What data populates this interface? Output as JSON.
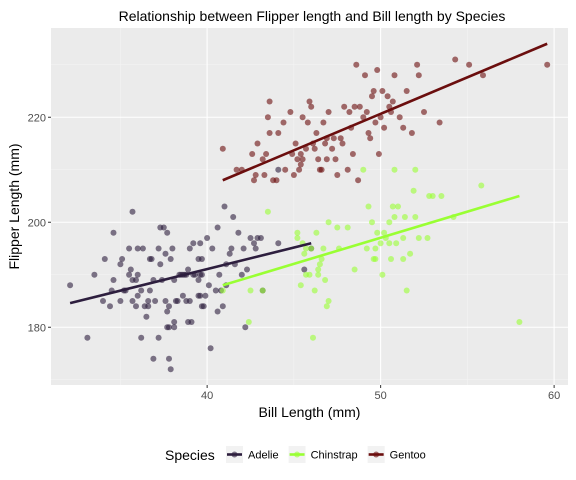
{
  "chart_data": {
    "type": "scatter",
    "title": "Relationship between Flipper length and Bill length by Species",
    "xlabel": "Bill Length (mm)",
    "ylabel": "Flipper Length (mm)",
    "xlim": [
      31.0,
      60.8
    ],
    "ylim": [
      169,
      237
    ],
    "xticks": [
      40,
      50,
      60
    ],
    "yticks": [
      180,
      200,
      220
    ],
    "grid": true,
    "legend": {
      "title": "Species",
      "placement": "bottom"
    },
    "series": [
      {
        "name": "Adelie",
        "color": "#2d1e3e",
        "trend": {
          "x": [
            32.1,
            46.0
          ],
          "y": [
            184.6,
            196.0
          ]
        },
        "points": [
          [
            32.1,
            188
          ],
          [
            33.1,
            178
          ],
          [
            33.5,
            190
          ],
          [
            34.0,
            185
          ],
          [
            34.4,
            184
          ],
          [
            34.5,
            187
          ],
          [
            34.6,
            189
          ],
          [
            34.6,
            198
          ],
          [
            35.0,
            185
          ],
          [
            35.0,
            192
          ],
          [
            35.1,
            193
          ],
          [
            35.2,
            187
          ],
          [
            35.3,
            187
          ],
          [
            35.5,
            190
          ],
          [
            35.5,
            195
          ],
          [
            35.6,
            191
          ],
          [
            35.7,
            185
          ],
          [
            35.7,
            189
          ],
          [
            35.7,
            202
          ],
          [
            35.9,
            184
          ],
          [
            35.9,
            189
          ],
          [
            36.0,
            186
          ],
          [
            36.0,
            190
          ],
          [
            36.0,
            195
          ],
          [
            36.2,
            187
          ],
          [
            36.2,
            178
          ],
          [
            36.3,
            195
          ],
          [
            36.4,
            184
          ],
          [
            36.5,
            182
          ],
          [
            36.6,
            184
          ],
          [
            36.6,
            185
          ],
          [
            36.7,
            187
          ],
          [
            36.7,
            193
          ],
          [
            36.8,
            193
          ],
          [
            36.9,
            189
          ],
          [
            37.0,
            185
          ],
          [
            37.2,
            178
          ],
          [
            37.2,
            195
          ],
          [
            37.3,
            192
          ],
          [
            37.3,
            199
          ],
          [
            37.5,
            199
          ],
          [
            37.6,
            185
          ],
          [
            37.6,
            194
          ],
          [
            37.7,
            180
          ],
          [
            37.7,
            183
          ],
          [
            37.7,
            198
          ],
          [
            37.8,
            174
          ],
          [
            37.8,
            180
          ],
          [
            37.8,
            184
          ],
          [
            37.9,
            172
          ],
          [
            37.9,
            193
          ],
          [
            38.0,
            195
          ],
          [
            38.1,
            180
          ],
          [
            38.1,
            181
          ],
          [
            38.1,
            189
          ],
          [
            38.2,
            185
          ],
          [
            38.3,
            185
          ],
          [
            38.5,
            190
          ],
          [
            38.6,
            186
          ],
          [
            38.6,
            190
          ],
          [
            38.7,
            190
          ],
          [
            38.8,
            185
          ],
          [
            38.8,
            190
          ],
          [
            38.9,
            181
          ],
          [
            38.9,
            191
          ],
          [
            39.0,
            185
          ],
          [
            39.0,
            195
          ],
          [
            39.1,
            181
          ],
          [
            39.2,
            190
          ],
          [
            39.2,
            196
          ],
          [
            39.3,
            190
          ],
          [
            39.5,
            186
          ],
          [
            39.5,
            189
          ],
          [
            39.5,
            193
          ],
          [
            39.6,
            186
          ],
          [
            39.6,
            190
          ],
          [
            39.6,
            196
          ],
          [
            39.7,
            184
          ],
          [
            39.7,
            190
          ],
          [
            39.7,
            193
          ],
          [
            39.8,
            184
          ],
          [
            40.1,
            188
          ],
          [
            40.2,
            176
          ],
          [
            40.3,
            195
          ],
          [
            40.5,
            187
          ],
          [
            40.6,
            183
          ],
          [
            40.6,
            199
          ],
          [
            40.7,
            190
          ],
          [
            40.8,
            187
          ],
          [
            40.9,
            184
          ],
          [
            41.0,
            203
          ],
          [
            41.1,
            188
          ],
          [
            41.1,
            192
          ],
          [
            41.3,
            194
          ],
          [
            41.4,
            195
          ],
          [
            41.5,
            201
          ],
          [
            41.6,
            192
          ],
          [
            42.0,
            190
          ],
          [
            42.1,
            195
          ],
          [
            42.2,
            180
          ],
          [
            42.3,
            191
          ],
          [
            42.5,
            197
          ],
          [
            42.7,
            196
          ],
          [
            42.8,
            195
          ],
          [
            42.9,
            197
          ],
          [
            43.1,
            197
          ],
          [
            43.2,
            187
          ],
          [
            44.1,
            196
          ],
          [
            44.1,
            210
          ],
          [
            45.6,
            191
          ],
          [
            46.0,
            195
          ],
          [
            34.1,
            193
          ],
          [
            36.9,
            174
          ],
          [
            37.4,
            189
          ],
          [
            38.4,
            190
          ],
          [
            39.9,
            186
          ],
          [
            41.8,
            198
          ],
          [
            40.0,
            197
          ]
        ]
      },
      {
        "name": "Chinstrap",
        "color": "#99ff33",
        "trend": {
          "x": [
            40.9,
            58.0
          ],
          "y": [
            188.0,
            205.0
          ]
        },
        "points": [
          [
            40.9,
            187
          ],
          [
            42.4,
            181
          ],
          [
            42.5,
            187
          ],
          [
            43.2,
            187
          ],
          [
            43.5,
            202
          ],
          [
            45.2,
            198
          ],
          [
            45.2,
            197
          ],
          [
            45.4,
            188
          ],
          [
            45.5,
            196
          ],
          [
            45.6,
            194
          ],
          [
            45.7,
            190
          ],
          [
            45.7,
            195
          ],
          [
            45.9,
            190
          ],
          [
            46.0,
            195
          ],
          [
            46.1,
            178
          ],
          [
            46.2,
            187
          ],
          [
            46.4,
            190
          ],
          [
            46.4,
            191
          ],
          [
            46.5,
            192
          ],
          [
            46.6,
            193
          ],
          [
            46.7,
            195
          ],
          [
            46.8,
            189
          ],
          [
            46.9,
            184
          ],
          [
            47.0,
            185
          ],
          [
            47.5,
            199
          ],
          [
            47.6,
            195
          ],
          [
            48.1,
            199
          ],
          [
            48.5,
            191
          ],
          [
            49.0,
            210
          ],
          [
            49.2,
            195
          ],
          [
            49.3,
            203
          ],
          [
            49.5,
            200
          ],
          [
            49.6,
            193
          ],
          [
            49.7,
            193
          ],
          [
            49.8,
            198
          ],
          [
            50.0,
            196
          ],
          [
            50.1,
            190
          ],
          [
            50.2,
            198
          ],
          [
            50.3,
            197
          ],
          [
            50.5,
            196
          ],
          [
            50.6,
            193
          ],
          [
            50.7,
            203
          ],
          [
            50.8,
            201
          ],
          [
            50.9,
            196
          ],
          [
            51.0,
            203
          ],
          [
            51.3,
            197
          ],
          [
            51.4,
            201
          ],
          [
            51.5,
            187
          ],
          [
            51.7,
            194
          ],
          [
            51.9,
            206
          ],
          [
            52.0,
            201
          ],
          [
            52.2,
            197
          ],
          [
            52.7,
            197
          ],
          [
            52.8,
            205
          ],
          [
            53.5,
            205
          ],
          [
            54.2,
            201
          ],
          [
            55.8,
            207
          ],
          [
            58.0,
            181
          ],
          [
            49.7,
            195
          ],
          [
            50.5,
            200
          ],
          [
            51.3,
            193
          ],
          [
            52.0,
            210
          ],
          [
            53.0,
            205
          ],
          [
            50.8,
            210
          ],
          [
            47.0,
            200
          ],
          [
            46.3,
            198
          ]
        ]
      },
      {
        "name": "Gentoo",
        "color": "#6b0e0e",
        "trend": {
          "x": [
            40.9,
            59.6
          ],
          "y": [
            208.0,
            234.0
          ]
        },
        "points": [
          [
            40.9,
            214
          ],
          [
            41.7,
            210
          ],
          [
            42.0,
            210
          ],
          [
            42.6,
            213
          ],
          [
            42.7,
            208
          ],
          [
            42.8,
            209
          ],
          [
            42.9,
            215
          ],
          [
            43.2,
            212
          ],
          [
            43.3,
            209
          ],
          [
            43.4,
            213
          ],
          [
            43.5,
            220
          ],
          [
            43.6,
            217
          ],
          [
            43.8,
            208
          ],
          [
            44.0,
            208
          ],
          [
            44.4,
            219
          ],
          [
            44.5,
            210
          ],
          [
            44.9,
            213
          ],
          [
            45.0,
            209
          ],
          [
            45.1,
            215
          ],
          [
            45.2,
            212
          ],
          [
            45.3,
            210
          ],
          [
            45.4,
            211
          ],
          [
            45.5,
            212
          ],
          [
            45.5,
            220
          ],
          [
            45.7,
            214
          ],
          [
            45.8,
            219
          ],
          [
            46.1,
            215
          ],
          [
            46.2,
            214
          ],
          [
            46.3,
            217
          ],
          [
            46.4,
            212
          ],
          [
            46.5,
            210
          ],
          [
            46.6,
            210
          ],
          [
            46.7,
            219
          ],
          [
            46.8,
            215
          ],
          [
            46.9,
            216
          ],
          [
            47.2,
            214
          ],
          [
            47.3,
            216
          ],
          [
            47.4,
            212
          ],
          [
            47.5,
            209
          ],
          [
            47.7,
            216
          ],
          [
            47.8,
            215
          ],
          [
            48.1,
            210
          ],
          [
            48.2,
            221
          ],
          [
            48.4,
            213
          ],
          [
            48.5,
            222
          ],
          [
            48.6,
            230
          ],
          [
            48.7,
            208
          ],
          [
            48.8,
            222
          ],
          [
            49.0,
            220
          ],
          [
            49.1,
            228
          ],
          [
            49.2,
            221
          ],
          [
            49.3,
            217
          ],
          [
            49.4,
            216
          ],
          [
            49.5,
            224
          ],
          [
            49.6,
            225
          ],
          [
            49.8,
            229
          ],
          [
            49.9,
            213
          ],
          [
            50.0,
            220
          ],
          [
            50.1,
            225
          ],
          [
            50.2,
            218
          ],
          [
            50.4,
            224
          ],
          [
            50.5,
            222
          ],
          [
            50.7,
            223
          ],
          [
            50.8,
            228
          ],
          [
            51.1,
            220
          ],
          [
            51.3,
            218
          ],
          [
            51.5,
            225
          ],
          [
            52.1,
            230
          ],
          [
            52.2,
            228
          ],
          [
            52.5,
            221
          ],
          [
            53.4,
            219
          ],
          [
            54.3,
            231
          ],
          [
            55.1,
            230
          ],
          [
            55.9,
            228
          ],
          [
            59.6,
            230
          ],
          [
            44.8,
            221
          ],
          [
            45.9,
            223
          ],
          [
            46.0,
            222
          ],
          [
            47.0,
            221
          ],
          [
            47.9,
            222
          ],
          [
            49.7,
            219
          ],
          [
            50.6,
            221
          ],
          [
            51.8,
            217
          ],
          [
            46.9,
            212
          ],
          [
            48.3,
            218
          ],
          [
            45.4,
            213
          ],
          [
            44.1,
            217
          ],
          [
            43.6,
            223
          ]
        ]
      }
    ]
  }
}
